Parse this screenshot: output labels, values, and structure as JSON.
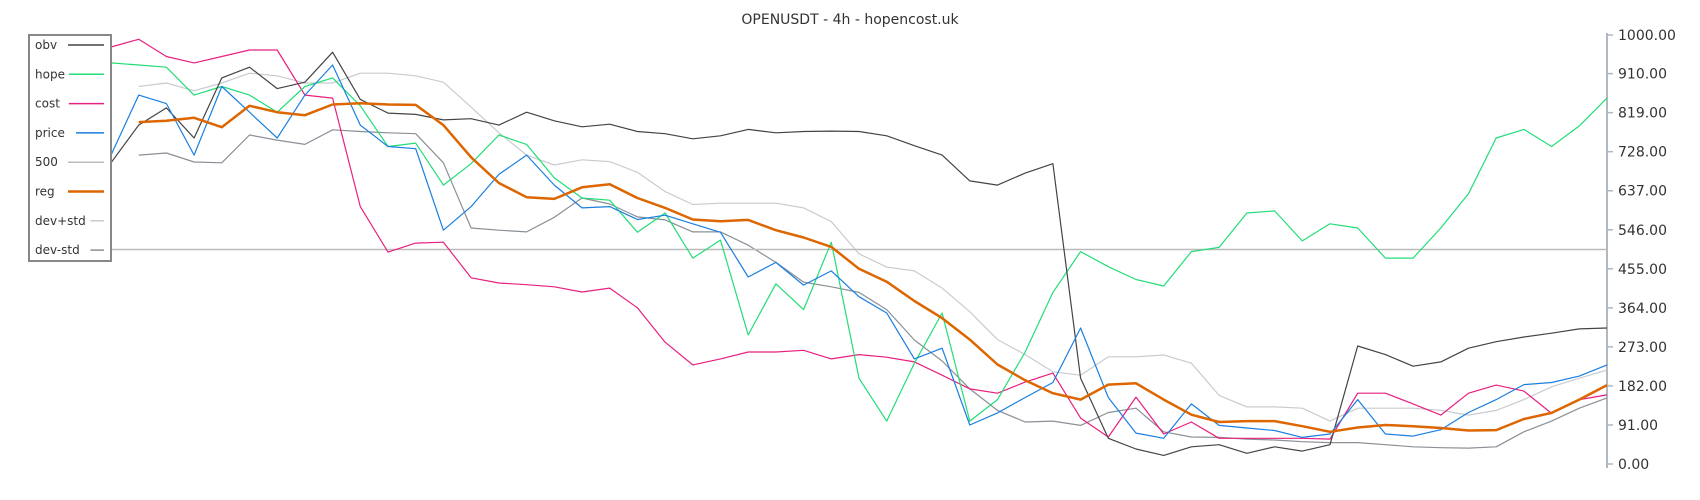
{
  "chart_data": {
    "type": "line",
    "title": "OPENUSDT - 4h - hopencost.uk",
    "xlabel": "",
    "ylabel": "",
    "ylim": [
      0,
      1000
    ],
    "y_axis_position": "right",
    "y_ticks": [
      "1000.00",
      "910.00",
      "819.00",
      "728.00",
      "637.00",
      "546.00",
      "455.00",
      "364.00",
      "273.00",
      "182.00",
      "91.00",
      "0.00"
    ],
    "grid": false,
    "legend_position": "top-left",
    "x": [
      0,
      1,
      2,
      3,
      4,
      5,
      6,
      7,
      8,
      9,
      10,
      11,
      12,
      13,
      14,
      15,
      16,
      17,
      18,
      19,
      20,
      21,
      22,
      23,
      24,
      25,
      26,
      27,
      28,
      29,
      30,
      31,
      32,
      33,
      34,
      35,
      36,
      37,
      38,
      39,
      40,
      41,
      42,
      43,
      44,
      45,
      46,
      47,
      48,
      49,
      50,
      51,
      52,
      53,
      54
    ],
    "series": [
      {
        "name": "obv",
        "color": "#444444",
        "values": [
          702,
          790,
          830,
          760,
          900,
          925,
          875,
          890,
          960,
          850,
          818,
          815,
          802,
          805,
          790,
          820,
          800,
          786,
          792,
          775,
          770,
          758,
          765,
          780,
          772,
          775,
          776,
          775,
          765,
          742,
          720,
          660,
          650,
          678,
          700,
          200,
          60,
          35,
          20,
          40,
          45,
          25,
          40,
          30,
          45,
          275,
          255,
          228,
          238,
          270,
          285,
          296,
          305,
          315,
          317
        ]
      },
      {
        "name": "hope",
        "color": "#22dd77",
        "values": [
          935,
          930,
          925,
          860,
          880,
          860,
          820,
          880,
          900,
          835,
          740,
          748,
          650,
          700,
          767,
          745,
          667,
          620,
          615,
          540,
          585,
          480,
          522,
          301,
          420,
          360,
          517,
          200,
          100,
          235,
          352,
          100,
          150,
          261,
          400,
          495,
          460,
          430,
          415,
          495,
          505,
          585,
          590,
          520,
          560,
          550,
          480,
          480,
          550,
          630,
          760,
          780,
          740,
          788,
          853
        ]
      },
      {
        "name": "cost",
        "color": "#e8207f",
        "values": [
          972,
          990,
          950,
          935,
          950,
          965,
          965,
          860,
          853,
          600,
          494,
          515,
          517,
          434,
          422,
          418,
          413,
          401,
          410,
          364,
          284,
          231,
          245,
          261,
          261,
          265,
          245,
          255,
          249,
          238,
          207,
          175,
          165,
          191,
          212,
          107,
          63,
          156,
          70,
          98,
          60,
          60,
          60,
          60,
          58,
          165,
          165,
          140,
          114,
          165,
          184,
          170,
          118,
          150,
          161
        ]
      },
      {
        "name": "price",
        "color": "#1a7fe0",
        "values": [
          720,
          860,
          840,
          720,
          880,
          820,
          760,
          860,
          930,
          790,
          740,
          735,
          545,
          600,
          675,
          720,
          650,
          597,
          600,
          570,
          580,
          560,
          540,
          436,
          470,
          417,
          450,
          390,
          352,
          245,
          270,
          91,
          119,
          155,
          190,
          317,
          155,
          72,
          60,
          140,
          90,
          84,
          78,
          62,
          70,
          150,
          70,
          65,
          80,
          120,
          150,
          185,
          190,
          205,
          231
        ]
      },
      {
        "name": "500",
        "color": "#bbbbbb",
        "values": [
          500,
          500,
          500,
          500,
          500,
          500,
          500,
          500,
          500,
          500,
          500,
          500,
          500,
          500,
          500,
          500,
          500,
          500,
          500,
          500,
          500,
          500,
          500,
          500,
          500,
          500,
          500,
          500,
          500,
          500,
          500,
          500,
          500,
          500,
          500,
          500,
          500,
          500,
          500,
          500,
          500,
          500,
          500,
          500,
          500,
          500,
          500,
          500,
          500,
          500,
          500,
          500,
          500,
          500,
          500
        ]
      },
      {
        "name": "reg",
        "color": "#dd6600",
        "values": [
          null,
          797,
          800,
          807,
          785,
          835,
          820,
          813,
          838,
          841,
          838,
          837,
          790,
          715,
          655,
          622,
          618,
          645,
          652,
          620,
          597,
          570,
          566,
          569,
          545,
          528,
          506,
          455,
          425,
          380,
          340,
          290,
          232,
          195,
          165,
          150,
          185,
          188,
          150,
          115,
          98,
          100,
          100,
          88,
          75,
          85,
          91,
          88,
          84,
          78,
          79,
          105,
          119,
          150,
          184
        ]
      },
      {
        "name": "dev+std",
        "color": "#c8ccd0",
        "values": [
          null,
          880,
          888,
          870,
          888,
          911,
          905,
          888,
          888,
          911,
          911,
          905,
          890,
          832,
          772,
          720,
          697,
          709,
          705,
          680,
          635,
          605,
          608,
          608,
          608,
          597,
          565,
          490,
          459,
          450,
          410,
          355,
          290,
          255,
          215,
          207,
          250,
          250,
          254,
          235,
          160,
          133,
          133,
          130,
          100,
          130,
          130,
          130,
          125,
          114,
          125,
          150,
          180,
          200,
          219
        ]
      },
      {
        "name": "dev-std",
        "color": "#8a9096",
        "values": [
          null,
          720,
          725,
          704,
          702,
          767,
          755,
          745,
          779,
          775,
          772,
          770,
          702,
          550,
          545,
          541,
          575,
          620,
          606,
          576,
          569,
          541,
          541,
          510,
          470,
          424,
          413,
          400,
          360,
          289,
          240,
          175,
          125,
          98,
          100,
          90,
          120,
          130,
          75,
          63,
          62,
          58,
          56,
          52,
          50,
          50,
          45,
          40,
          38,
          37,
          40,
          75,
          100,
          130,
          154
        ]
      }
    ]
  }
}
